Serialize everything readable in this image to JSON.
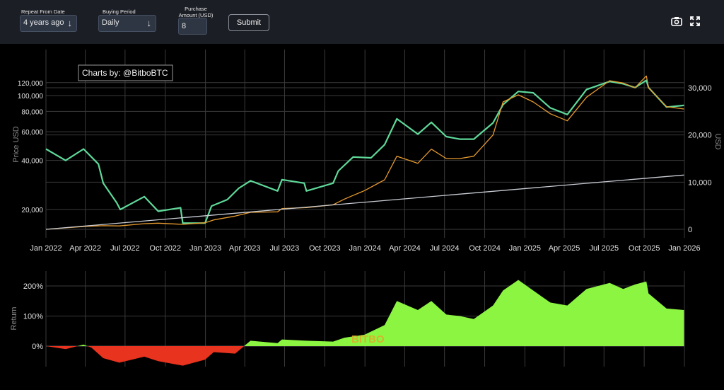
{
  "controls": {
    "repeat_label": "Repeat From Date",
    "repeat_value": "4 years ago",
    "period_label": "Buying Period",
    "period_value": "Daily",
    "amount_label_1": "Purchase",
    "amount_label_2": "Amount (USD)",
    "amount_value": "8",
    "submit_label": "Submit"
  },
  "icons": {
    "camera": "camera-icon",
    "fullscreen": "fullscreen-icon"
  },
  "chart_data": [
    {
      "type": "line",
      "annotation": "Charts by: @BitboBTC",
      "ylabel": "Price USD",
      "y2label": "USD",
      "y_scale": "log",
      "x_ticks": [
        "Jan 2022",
        "Apr 2022",
        "Jul 2022",
        "Oct 2022",
        "Jan 2023",
        "Apr 2023",
        "Jul 2023",
        "Oct 2023",
        "Jan 2024",
        "Apr 2024",
        "Jul 2024",
        "Oct 2024",
        "Jan 2025",
        "Apr 2025",
        "Jul 2025",
        "Oct 2025",
        "Jan 2026"
      ],
      "y_ticks": [
        "20,000",
        "40,000",
        "60,000",
        "80,000",
        "100,000",
        "120,000"
      ],
      "y2_ticks": [
        "0",
        "10,000",
        "20,000",
        "30,000"
      ],
      "colors": {
        "price": "#5fd99a",
        "value": "#e69a2e",
        "invested": "#c8ccd4",
        "grid": "#3a3a3a"
      },
      "series": [
        {
          "key": "price",
          "x": [
            "2022-01-01",
            "2022-02-15",
            "2022-03-28",
            "2022-05-01",
            "2022-05-12",
            "2022-06-12",
            "2022-06-20",
            "2022-08-14",
            "2022-09-15",
            "2022-11-05",
            "2022-11-10",
            "2022-12-31",
            "2023-01-15",
            "2023-02-20",
            "2023-03-18",
            "2023-04-14",
            "2023-06-15",
            "2023-06-25",
            "2023-08-15",
            "2023-08-20",
            "2023-10-20",
            "2023-11-01",
            "2023-12-05",
            "2024-01-15",
            "2024-02-15",
            "2024-03-14",
            "2024-05-01",
            "2024-06-01",
            "2024-07-05",
            "2024-08-05",
            "2024-09-06",
            "2024-10-20",
            "2024-11-12",
            "2024-12-17",
            "2025-01-20",
            "2025-02-28",
            "2025-04-08",
            "2025-05-22",
            "2025-07-14",
            "2025-08-14",
            "2025-09-10",
            "2025-10-06",
            "2025-10-11",
            "2025-11-21",
            "2025-12-31"
          ],
          "values": [
            47000,
            40000,
            47000,
            38000,
            29000,
            22000,
            20000,
            24000,
            19500,
            20500,
            16500,
            16500,
            21000,
            23000,
            27000,
            30000,
            26000,
            30500,
            29000,
            26000,
            29000,
            34500,
            42000,
            41500,
            50000,
            72000,
            58000,
            68500,
            56000,
            54000,
            54000,
            68000,
            88000,
            106000,
            104000,
            84000,
            76500,
            109000,
            122000,
            118000,
            112000,
            124000,
            112000,
            85000,
            87000
          ]
        },
        {
          "key": "value",
          "x": [
            "2022-01-01",
            "2022-04-01",
            "2022-05-12",
            "2022-06-18",
            "2022-08-14",
            "2022-09-15",
            "2022-11-10",
            "2022-12-31",
            "2023-01-20",
            "2023-03-10",
            "2023-04-14",
            "2023-06-15",
            "2023-06-25",
            "2023-08-20",
            "2023-10-20",
            "2023-11-15",
            "2023-12-31",
            "2024-02-15",
            "2024-03-14",
            "2024-05-01",
            "2024-06-01",
            "2024-07-05",
            "2024-08-05",
            "2024-09-06",
            "2024-10-20",
            "2024-11-12",
            "2024-12-17",
            "2025-01-20",
            "2025-02-28",
            "2025-04-08",
            "2025-05-22",
            "2025-07-14",
            "2025-08-14",
            "2025-09-10",
            "2025-10-06",
            "2025-10-11",
            "2025-11-21",
            "2025-12-31"
          ],
          "values": [
            0,
            630,
            770,
            720,
            1200,
            1300,
            1050,
            1400,
            2000,
            2800,
            3600,
            3700,
            4400,
            4600,
            5200,
            6400,
            8200,
            10500,
            15500,
            14000,
            17000,
            15000,
            15000,
            15500,
            20000,
            27000,
            28500,
            27000,
            24500,
            23000,
            28000,
            31500,
            31000,
            30000,
            32500,
            30000,
            26000,
            25500
          ]
        },
        {
          "key": "invested",
          "x": [
            "2022-01-01",
            "2025-12-31"
          ],
          "values": [
            0,
            11500
          ]
        }
      ]
    },
    {
      "type": "area",
      "ylabel": "Return",
      "watermark": "BITBO",
      "y_ticks": [
        "0%",
        "100%",
        "200%"
      ],
      "colors": {
        "positive": "#8cf542",
        "negative": "#e8331f"
      },
      "x": [
        "2022-01-01",
        "2022-02-15",
        "2022-03-28",
        "2022-04-15",
        "2022-05-12",
        "2022-06-18",
        "2022-08-14",
        "2022-09-15",
        "2022-11-10",
        "2022-12-31",
        "2023-01-20",
        "2023-03-10",
        "2023-04-14",
        "2023-06-15",
        "2023-06-25",
        "2023-08-20",
        "2023-10-20",
        "2023-11-15",
        "2023-12-31",
        "2024-02-15",
        "2024-03-14",
        "2024-05-01",
        "2024-06-01",
        "2024-07-05",
        "2024-08-05",
        "2024-09-06",
        "2024-10-20",
        "2024-11-12",
        "2024-12-17",
        "2025-01-20",
        "2025-02-28",
        "2025-04-08",
        "2025-05-22",
        "2025-07-14",
        "2025-08-14",
        "2025-09-10",
        "2025-10-06",
        "2025-10-11",
        "2025-11-21",
        "2025-12-31"
      ],
      "values": [
        0,
        -10,
        5,
        -5,
        -40,
        -55,
        -35,
        -50,
        -65,
        -45,
        -20,
        -25,
        18,
        10,
        22,
        18,
        15,
        28,
        38,
        70,
        150,
        120,
        150,
        105,
        100,
        90,
        135,
        185,
        220,
        185,
        145,
        135,
        190,
        210,
        190,
        205,
        215,
        175,
        125,
        120
      ]
    }
  ]
}
